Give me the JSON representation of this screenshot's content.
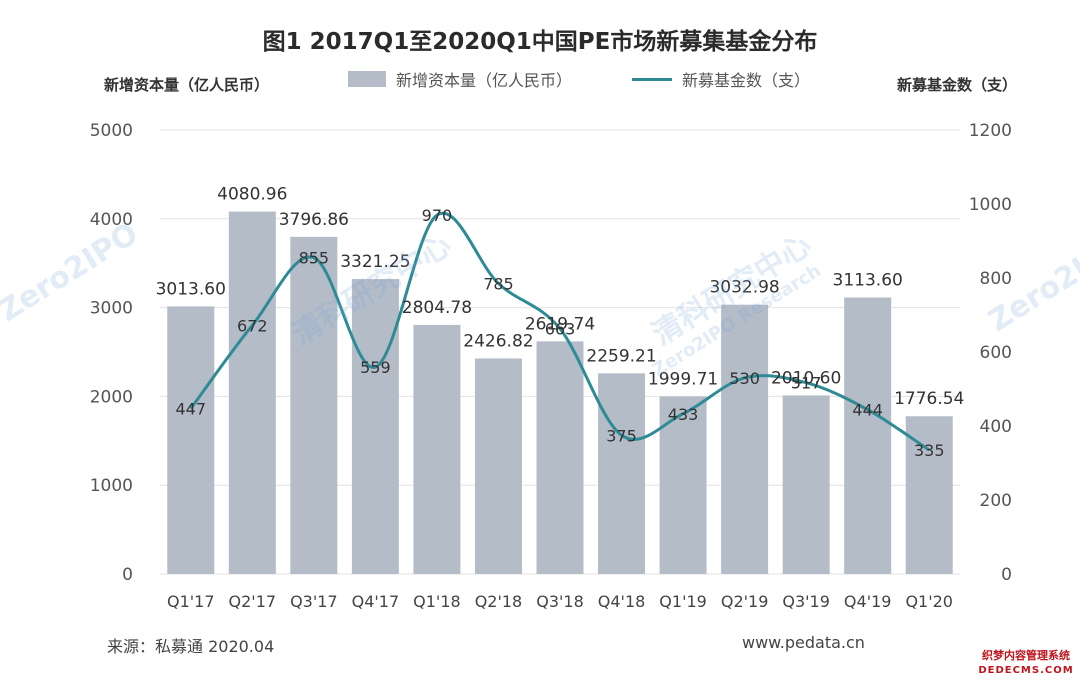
{
  "title": "图1 2017Q1至2020Q1中国PE市场新募集基金分布",
  "left_axis_title": "新增资本量（亿人民币）",
  "right_axis_title": "新募基金数（支）",
  "legend": {
    "bar": "新增资本量（亿人民币）",
    "line": "新募基金数（支）"
  },
  "footer": {
    "source": "来源：私募通 2020.04",
    "site": "www.pedata.cn"
  },
  "watermark": {
    "brand": "Zero2IPO",
    "cn": "清科研究中心",
    "en": "Zero2IPO Research"
  },
  "stamp": {
    "cn": "织梦内容管理系统",
    "en": "DEDECMS.COM"
  },
  "colors": {
    "bar": "#b4bcc8",
    "line": "#2e8b96",
    "grid": "#e3e3e3"
  },
  "chart_data": {
    "type": "bar",
    "categories": [
      "Q1'17",
      "Q2'17",
      "Q3'17",
      "Q4'17",
      "Q1'18",
      "Q2'18",
      "Q3'18",
      "Q4'18",
      "Q1'19",
      "Q2'19",
      "Q3'19",
      "Q4'19",
      "Q1'20"
    ],
    "series": [
      {
        "name": "新增资本量（亿人民币）",
        "type": "bar",
        "axis": "left",
        "values": [
          3013.6,
          4080.96,
          3796.86,
          3321.25,
          2804.78,
          2426.82,
          2619.74,
          2259.21,
          1999.71,
          3032.98,
          2010.6,
          3113.6,
          1776.54
        ],
        "labels": [
          "3013.60",
          "4080.96",
          "3796.86",
          "3321.25",
          "2804.78",
          "2426.82",
          "2619.74",
          "2259.21",
          "1999.71",
          "3032.98",
          "2010.60",
          "3113.60",
          "1776.54"
        ]
      },
      {
        "name": "新募基金数（支）",
        "type": "line",
        "axis": "right",
        "smooth": true,
        "values": [
          447,
          672,
          855,
          559,
          970,
          785,
          663,
          375,
          433,
          530,
          517,
          444,
          335
        ],
        "labels": [
          "447",
          "672",
          "855",
          "559",
          "970",
          "785",
          "663",
          "375",
          "433",
          "530",
          "517",
          "444",
          "335"
        ]
      }
    ],
    "y_left": {
      "range": [
        0,
        5000
      ],
      "ticks": [
        "0",
        "1000",
        "2000",
        "3000",
        "4000",
        "5000"
      ]
    },
    "y_right": {
      "range": [
        0,
        1200
      ],
      "ticks": [
        "0",
        "200",
        "400",
        "600",
        "800",
        "1000",
        "1200"
      ]
    },
    "grid": true,
    "legend_position": "top"
  }
}
